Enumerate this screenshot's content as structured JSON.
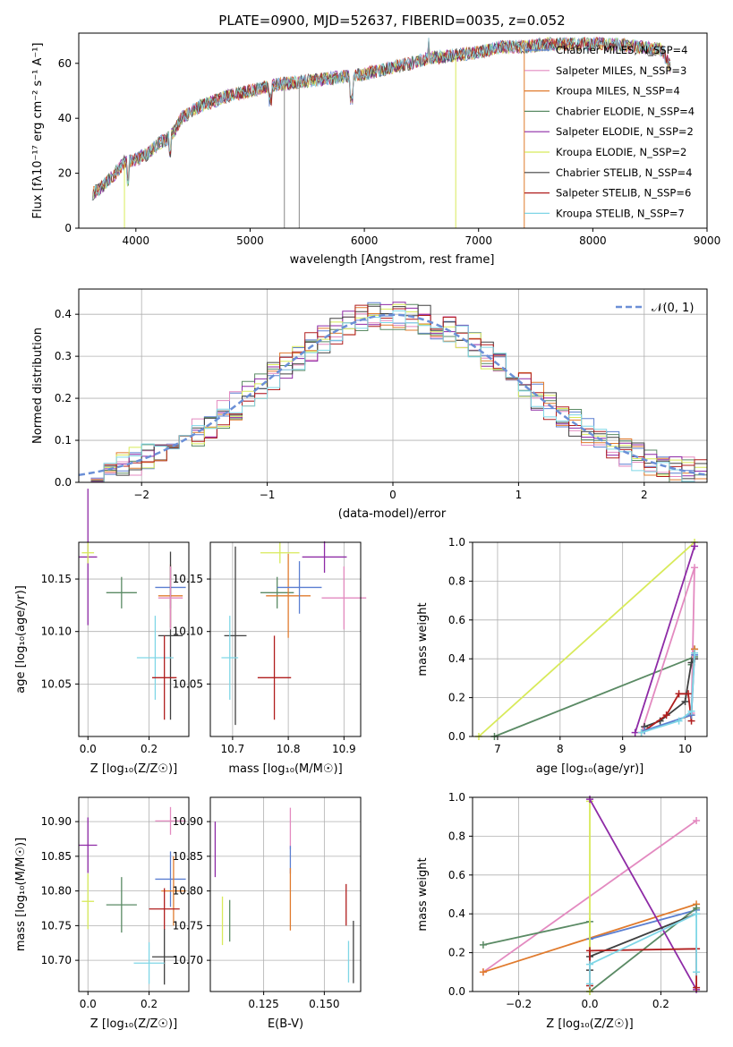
{
  "chart_data": [
    {
      "type": "line",
      "title": "PLATE=0900, MJD=52637, FIBERID=0035, z=0.052",
      "xlabel": "wavelength [Angstrom, rest frame]",
      "ylabel": "Flux [fλ10⁻¹⁷ erg cm⁻² s⁻¹ A⁻¹]",
      "xlim": [
        3500,
        9000
      ],
      "ylim": [
        0,
        71
      ],
      "xticks": [
        "4000",
        "5000",
        "6000",
        "7000",
        "8000",
        "9000"
      ],
      "yticks": [
        "0",
        "20",
        "40",
        "60"
      ],
      "grid": false,
      "legend_position": "top-right",
      "continuum": {
        "x": [
          3600,
          3700,
          3800,
          3900,
          4000,
          4100,
          4200,
          4300,
          4400,
          4500,
          4600,
          4800,
          5000,
          5200,
          5400,
          5600,
          5800,
          6000,
          6200,
          6400,
          6600,
          6800,
          7000,
          7200,
          7400,
          7600,
          7800,
          8000,
          8200,
          8400,
          8600,
          8700
        ],
        "y": [
          12,
          15,
          19,
          24,
          25,
          27,
          31,
          33,
          40,
          43,
          45,
          48,
          50,
          52,
          53,
          54,
          55,
          56,
          58,
          60,
          62,
          63,
          64,
          66,
          66,
          67,
          67,
          67,
          67,
          66,
          65,
          57
        ]
      },
      "series": [
        {
          "name": "Chabrier MILES, N_SSP=4",
          "color": "#5b7fd1"
        },
        {
          "name": "Salpeter MILES, N_SSP=3",
          "color": "#e38ac0"
        },
        {
          "name": "Kroupa MILES, N_SSP=4",
          "color": "#e07b2e"
        },
        {
          "name": "Chabrier ELODIE, N_SSP=4",
          "color": "#5a8a64"
        },
        {
          "name": "Salpeter ELODIE, N_SSP=2",
          "color": "#8e2aa6"
        },
        {
          "name": "Kroupa ELODIE, N_SSP=2",
          "color": "#d8ea5a"
        },
        {
          "name": "Chabrier STELIB, N_SSP=4",
          "color": "#404040"
        },
        {
          "name": "Salpeter STELIB, N_SSP=6",
          "color": "#b01e1e"
        },
        {
          "name": "Kroupa STELIB, N_SSP=7",
          "color": "#7fd6e6"
        }
      ]
    },
    {
      "type": "line",
      "xlabel": "(data-model)/error",
      "ylabel": "Normed distribution",
      "xlim": [
        -2.5,
        2.5
      ],
      "ylim": [
        0,
        0.46
      ],
      "xticks": [
        "−2",
        "−1",
        "0",
        "1",
        "2"
      ],
      "yticks": [
        "0.0",
        "0.1",
        "0.2",
        "0.3",
        "0.4"
      ],
      "grid": true,
      "legend_position": "top-right",
      "gaussian_label": "𝒩(0, 1)",
      "gaussian_color": "#6b8fd6"
    },
    {
      "type": "scatter",
      "xlabel": "Z [log₁₀(Z/Z☉)]",
      "ylabel": "age  [log₁₀(age/yr)]",
      "xlim": [
        -0.03,
        0.33
      ],
      "ylim": [
        10.0,
        10.185
      ],
      "xticks": [
        "0.0",
        "0.2"
      ],
      "yticks": [
        "10.05",
        "10.10",
        "10.15"
      ],
      "grid": true,
      "points": [
        {
          "x": 0.0,
          "y": 10.171,
          "xerr": 0.03,
          "yerr": 0.065,
          "color": "#8e2aa6"
        },
        {
          "x": 0.0,
          "y": 10.175,
          "xerr": 0.02,
          "yerr": 0.01,
          "color": "#d8ea5a"
        },
        {
          "x": 0.11,
          "y": 10.137,
          "xerr": 0.05,
          "yerr": 0.015,
          "color": "#5a8a64"
        },
        {
          "x": 0.27,
          "y": 10.142,
          "xerr": 0.05,
          "yerr": 0.02,
          "color": "#5b7fd1"
        },
        {
          "x": 0.27,
          "y": 10.134,
          "xerr": 0.04,
          "yerr": 0.03,
          "color": "#e07b2e"
        },
        {
          "x": 0.27,
          "y": 10.096,
          "xerr": 0.04,
          "yerr": 0.08,
          "color": "#404040"
        },
        {
          "x": 0.22,
          "y": 10.075,
          "xerr": 0.06,
          "yerr": 0.04,
          "color": "#7fd6e6"
        },
        {
          "x": 0.25,
          "y": 10.056,
          "xerr": 0.04,
          "yerr": 0.04,
          "color": "#b01e1e"
        },
        {
          "x": 0.27,
          "y": 10.132,
          "xerr": 0.04,
          "yerr": 0.03,
          "color": "#e38ac0"
        }
      ]
    },
    {
      "type": "scatter",
      "xlabel": "mass [log₁₀(M/M☉)]",
      "ylabel": "",
      "xlim": [
        10.66,
        10.93
      ],
      "ylim": [
        10.0,
        10.185
      ],
      "xticks": [
        "10.7",
        "10.8",
        "10.9"
      ],
      "yticks": [
        "10.05",
        "10.10",
        "10.15"
      ],
      "grid": true,
      "points": [
        {
          "x": 10.705,
          "y": 10.096,
          "xerr": 0.02,
          "yerr": 0.085,
          "color": "#404040"
        },
        {
          "x": 10.695,
          "y": 10.075,
          "xerr": 0.015,
          "yerr": 0.04,
          "color": "#7fd6e6"
        },
        {
          "x": 10.775,
          "y": 10.056,
          "xerr": 0.03,
          "yerr": 0.04,
          "color": "#b01e1e"
        },
        {
          "x": 10.78,
          "y": 10.137,
          "xerr": 0.03,
          "yerr": 0.015,
          "color": "#5a8a64"
        },
        {
          "x": 10.785,
          "y": 10.175,
          "xerr": 0.035,
          "yerr": 0.01,
          "color": "#d8ea5a"
        },
        {
          "x": 10.8,
          "y": 10.134,
          "xerr": 0.04,
          "yerr": 0.04,
          "color": "#e07b2e"
        },
        {
          "x": 10.82,
          "y": 10.142,
          "xerr": 0.04,
          "yerr": 0.025,
          "color": "#5b7fd1"
        },
        {
          "x": 10.865,
          "y": 10.171,
          "xerr": 0.04,
          "yerr": 0.015,
          "color": "#8e2aa6"
        },
        {
          "x": 10.9,
          "y": 10.132,
          "xerr": 0.04,
          "yerr": 0.03,
          "color": "#e38ac0"
        }
      ]
    },
    {
      "type": "line",
      "xlabel": "age  [log₁₀(age/yr)]",
      "ylabel": "mass weight",
      "xlim": [
        6.6,
        10.35
      ],
      "ylim": [
        0,
        1.0
      ],
      "xticks": [
        "7",
        "8",
        "9",
        "10"
      ],
      "yticks": [
        "0.0",
        "0.2",
        "0.4",
        "0.6",
        "0.8",
        "1.0"
      ],
      "grid": true,
      "series": [
        {
          "color": "#d8ea5a",
          "x": [
            6.7,
            10.15
          ],
          "y": [
            0.0,
            1.0
          ]
        },
        {
          "color": "#5a8a64",
          "x": [
            6.95,
            10.15,
            10.15,
            10.1
          ],
          "y": [
            0.0,
            0.41,
            0.45,
            0.37
          ]
        },
        {
          "color": "#8e2aa6",
          "x": [
            9.2,
            10.15
          ],
          "y": [
            0.02,
            0.98
          ]
        },
        {
          "color": "#e38ac0",
          "x": [
            9.3,
            10.15,
            10.1
          ],
          "y": [
            0.02,
            0.87,
            0.12
          ]
        },
        {
          "color": "#404040",
          "x": [
            9.35,
            9.6,
            10.0,
            10.1,
            10.15
          ],
          "y": [
            0.05,
            0.08,
            0.18,
            0.38,
            0.4
          ]
        },
        {
          "color": "#b01e1e",
          "x": [
            9.35,
            9.7,
            9.9,
            10.05,
            10.1
          ],
          "y": [
            0.03,
            0.11,
            0.22,
            0.22,
            0.08
          ]
        },
        {
          "color": "#e07b2e",
          "x": [
            9.3,
            10.1,
            10.15
          ],
          "y": [
            0.02,
            0.11,
            0.45
          ]
        },
        {
          "color": "#5b7fd1",
          "x": [
            9.35,
            10.1,
            10.15
          ],
          "y": [
            0.03,
            0.11,
            0.42
          ]
        },
        {
          "color": "#7fd6e6",
          "x": [
            9.3,
            9.9,
            10.1,
            10.15
          ],
          "y": [
            0.02,
            0.08,
            0.13,
            0.43
          ]
        }
      ]
    },
    {
      "type": "scatter",
      "xlabel": "Z [log₁₀(Z/Z☉)]",
      "ylabel": "mass [log₁₀(M/M☉)]",
      "xlim": [
        -0.03,
        0.33
      ],
      "ylim": [
        10.655,
        10.935
      ],
      "xticks": [
        "0.0",
        "0.2"
      ],
      "yticks": [
        "10.70",
        "10.75",
        "10.80",
        "10.85",
        "10.90"
      ],
      "grid": true,
      "points": [
        {
          "x": 0.0,
          "y": 10.866,
          "xerr": 0.03,
          "yerr": 0.04,
          "color": "#8e2aa6"
        },
        {
          "x": 0.0,
          "y": 10.785,
          "xerr": 0.02,
          "yerr": 0.04,
          "color": "#d8ea5a"
        },
        {
          "x": 0.11,
          "y": 10.78,
          "xerr": 0.05,
          "yerr": 0.04,
          "color": "#5a8a64"
        },
        {
          "x": 0.27,
          "y": 10.901,
          "xerr": 0.05,
          "yerr": 0.02,
          "color": "#e38ac0"
        },
        {
          "x": 0.27,
          "y": 10.817,
          "xerr": 0.05,
          "yerr": 0.04,
          "color": "#5b7fd1"
        },
        {
          "x": 0.28,
          "y": 10.8,
          "xerr": 0.04,
          "yerr": 0.05,
          "color": "#e07b2e"
        },
        {
          "x": 0.25,
          "y": 10.774,
          "xerr": 0.05,
          "yerr": 0.03,
          "color": "#b01e1e"
        },
        {
          "x": 0.25,
          "y": 10.705,
          "xerr": 0.04,
          "yerr": 0.04,
          "color": "#404040"
        },
        {
          "x": 0.2,
          "y": 10.696,
          "xerr": 0.05,
          "yerr": 0.03,
          "color": "#7fd6e6"
        }
      ]
    },
    {
      "type": "scatter",
      "xlabel": "E(B-V)",
      "ylabel": "",
      "xlim": [
        0.103,
        0.165
      ],
      "ylim": [
        10.655,
        10.935
      ],
      "xticks": [
        "0.125",
        "0.150"
      ],
      "yticks": [
        "10.70",
        "10.75",
        "10.80",
        "10.85",
        "10.90"
      ],
      "grid": true,
      "points": [
        {
          "x": 0.105,
          "y": 10.86,
          "yerr": 0.04,
          "color": "#8e2aa6"
        },
        {
          "x": 0.108,
          "y": 10.757,
          "yerr": 0.035,
          "color": "#d8ea5a"
        },
        {
          "x": 0.111,
          "y": 10.757,
          "yerr": 0.03,
          "color": "#5a8a64"
        },
        {
          "x": 0.136,
          "y": 10.89,
          "yerr": 0.03,
          "color": "#e38ac0"
        },
        {
          "x": 0.136,
          "y": 10.845,
          "yerr": 0.02,
          "color": "#5b7fd1"
        },
        {
          "x": 0.136,
          "y": 10.788,
          "yerr": 0.045,
          "color": "#e07b2e"
        },
        {
          "x": 0.159,
          "y": 10.78,
          "yerr": 0.03,
          "color": "#b01e1e"
        },
        {
          "x": 0.16,
          "y": 10.698,
          "yerr": 0.03,
          "color": "#7fd6e6"
        },
        {
          "x": 0.162,
          "y": 10.712,
          "yerr": 0.045,
          "color": "#404040"
        }
      ]
    },
    {
      "type": "line",
      "xlabel": "Z [log₁₀(Z/Z☉)]",
      "ylabel": "mass weight",
      "xlim": [
        -0.33,
        0.33
      ],
      "ylim": [
        0,
        1.0
      ],
      "xticks": [
        "−0.2",
        "0.0",
        "0.2"
      ],
      "yticks": [
        "0.0",
        "0.2",
        "0.4",
        "0.6",
        "0.8",
        "1.0"
      ],
      "grid": true,
      "series": [
        {
          "color": "#e38ac0",
          "x": [
            -0.3,
            0.3
          ],
          "y": [
            0.1,
            0.88
          ]
        },
        {
          "color": "#e07b2e",
          "x": [
            -0.3,
            0.3
          ],
          "y": [
            0.1,
            0.45
          ]
        },
        {
          "color": "#5b7fd1",
          "x": [
            0.0,
            0.3
          ],
          "y": [
            0.27,
            0.42
          ]
        },
        {
          "color": "#5a8a64",
          "x": [
            -0.3,
            0.0,
            0.0,
            0.3
          ],
          "y": [
            0.24,
            0.36,
            0.0,
            0.43
          ]
        },
        {
          "color": "#d8ea5a",
          "x": [
            0.0,
            0.0
          ],
          "y": [
            0.98,
            0.0
          ]
        },
        {
          "color": "#8e2aa6",
          "x": [
            0.0,
            0.3
          ],
          "y": [
            0.99,
            0.01
          ]
        },
        {
          "color": "#404040",
          "x": [
            0.0,
            0.0,
            0.3
          ],
          "y": [
            0.11,
            0.18,
            0.4
          ]
        },
        {
          "color": "#b01e1e",
          "x": [
            0.0,
            0.0,
            0.3,
            0.3
          ],
          "y": [
            0.03,
            0.21,
            0.22,
            0.02
          ]
        },
        {
          "color": "#7fd6e6",
          "x": [
            0.0,
            0.0,
            0.3,
            0.3
          ],
          "y": [
            0.04,
            0.14,
            0.4,
            0.1
          ]
        }
      ]
    }
  ]
}
